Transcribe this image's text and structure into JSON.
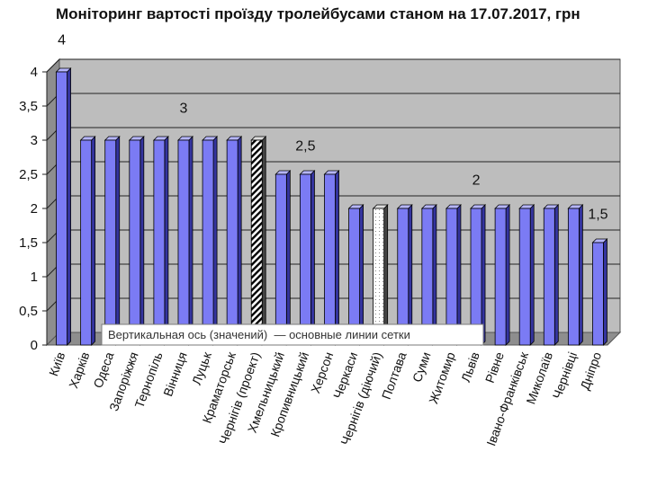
{
  "chart_data": {
    "type": "bar",
    "title": "Моніторинг вартості проїзду тролейбусами станом на 17.07.2017, грн",
    "categories": [
      "Київ",
      "Харків",
      "Одеса",
      "Запоріжжя",
      "Тернопіль",
      "Вінниця",
      "Луцьк",
      "Краматорськ",
      "Чернігів (проект)",
      "Хмельницький",
      "Кропивницький",
      "Херсон",
      "Черкаси",
      "Чернігів (діючий)",
      "Полтава",
      "Суми",
      "Житомир",
      "Львів",
      "Рівне",
      "Івано-Франківськ",
      "Миколаїв",
      "Чернівці",
      "Дніпро"
    ],
    "values": [
      4,
      3,
      3,
      3,
      3,
      3,
      3,
      3,
      3,
      2.5,
      2.5,
      2.5,
      2,
      2,
      2,
      2,
      2,
      2,
      2,
      2,
      2,
      2,
      1.5
    ],
    "patterns": [
      "solid",
      "solid",
      "solid",
      "solid",
      "solid",
      "solid",
      "solid",
      "solid",
      "hatched",
      "solid",
      "solid",
      "solid",
      "solid",
      "dotted",
      "solid",
      "solid",
      "solid",
      "solid",
      "solid",
      "solid",
      "solid",
      "solid",
      "solid"
    ],
    "y_ticks": [
      "0",
      "0,5",
      "1",
      "1,5",
      "2",
      "2,5",
      "3",
      "3,5",
      "4"
    ],
    "ylim": [
      0,
      4
    ],
    "grid": true,
    "annotations": [
      {
        "text": "4",
        "category": 0,
        "level": 4.4
      },
      {
        "text": "3",
        "category": 5,
        "level": 3.4
      },
      {
        "text": "2,5",
        "category": 10,
        "level": 2.85
      },
      {
        "text": "2",
        "category": 17,
        "level": 2.35
      },
      {
        "text": "1,5",
        "category": 22,
        "level": 1.85
      }
    ],
    "tooltip": "Вертикальная ось (значений)  — основные линии сетки",
    "colors": {
      "bar_front": "#7b7bf4",
      "bar_side": "#34349e",
      "bar_top": "#b6b6ff",
      "plot_bg": "#bdbdbd",
      "left_wall": "#8e8e8e",
      "floor": "#8e8e8e"
    }
  }
}
